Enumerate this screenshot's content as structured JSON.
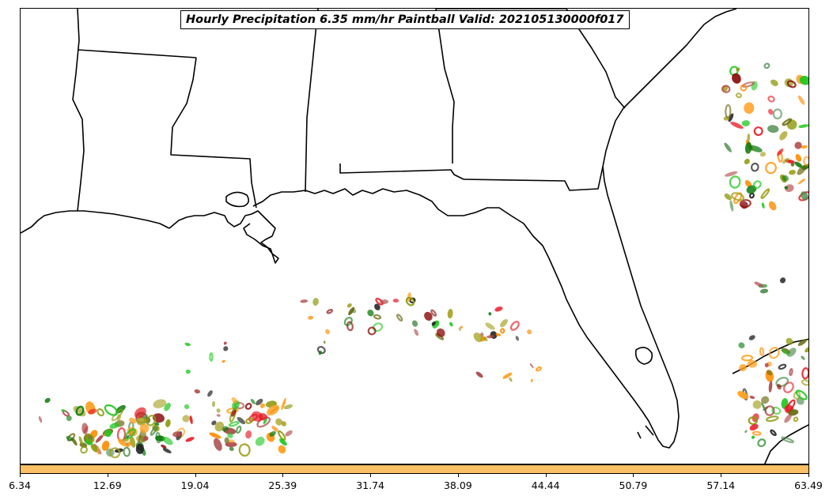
{
  "title": "Hourly Precipitation 6.35 mm/hr Paintball Valid: 202105130000f017",
  "colors": {
    "coast": "#000000",
    "colorbar_fill": "#fcc064",
    "member_colors": [
      "#e8141e",
      "#8b0a0a",
      "#b04848",
      "#ff8c00",
      "#ffa020",
      "#1ec81e",
      "#0a7a0a",
      "#4a8a4a",
      "#8e9a0e",
      "#a4a020",
      "#6a6a10",
      "#202020"
    ]
  },
  "colorbar": {
    "ticks": [
      "6.34",
      "12.69",
      "19.04",
      "25.39",
      "31.74",
      "38.09",
      "44.44",
      "50.79",
      "57.14",
      "63.49"
    ]
  },
  "layers": {
    "coastline_and_state_borders": "black lines",
    "precipitation_contours": "paintball ensemble members"
  }
}
